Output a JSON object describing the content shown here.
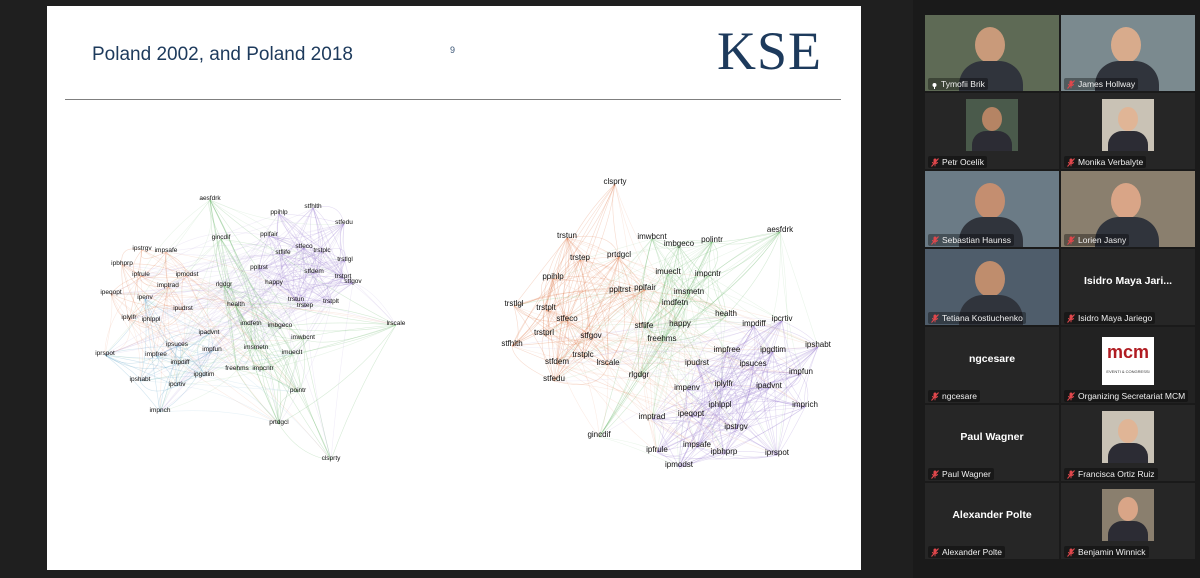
{
  "slide": {
    "title": "Poland 2002, and Poland 2018",
    "page_number": "9",
    "logo_text": "KSE",
    "network_2002": [
      {
        "label": "aesfdrk",
        "cluster": "green"
      },
      {
        "label": "stfhlth",
        "cluster": "purple"
      },
      {
        "label": "ppihlp",
        "cluster": "purple"
      },
      {
        "label": "stfedu",
        "cluster": "purple"
      },
      {
        "label": "pplfair",
        "cluster": "purple"
      },
      {
        "label": "gincdif",
        "cluster": "green"
      },
      {
        "label": "stflife",
        "cluster": "purple"
      },
      {
        "label": "stfeco",
        "cluster": "purple"
      },
      {
        "label": "trstplc",
        "cluster": "purple"
      },
      {
        "label": "trstlgl",
        "cluster": "purple"
      },
      {
        "label": "ipstrgv",
        "cluster": "orange"
      },
      {
        "label": "impsafe",
        "cluster": "orange"
      },
      {
        "label": "ppltrst",
        "cluster": "purple"
      },
      {
        "label": "stfdem",
        "cluster": "purple"
      },
      {
        "label": "trstprt",
        "cluster": "purple"
      },
      {
        "label": "stfgov",
        "cluster": "purple"
      },
      {
        "label": "ipbhprp",
        "cluster": "orange"
      },
      {
        "label": "rlgdgr",
        "cluster": "green"
      },
      {
        "label": "happy",
        "cluster": "purple"
      },
      {
        "label": "ipfrule",
        "cluster": "orange"
      },
      {
        "label": "ipmodst",
        "cluster": "orange"
      },
      {
        "label": "imptrad",
        "cluster": "orange"
      },
      {
        "label": "trstun",
        "cluster": "purple"
      },
      {
        "label": "trstplt",
        "cluster": "purple"
      },
      {
        "label": "trstep",
        "cluster": "purple"
      },
      {
        "label": "ipeqopt",
        "cluster": "orange"
      },
      {
        "label": "health",
        "cluster": "green"
      },
      {
        "label": "ipenv",
        "cluster": "blue"
      },
      {
        "label": "ipudrst",
        "cluster": "orange"
      },
      {
        "label": "lrscale",
        "cluster": "green"
      },
      {
        "label": "iplylfr",
        "cluster": "orange"
      },
      {
        "label": "iphlppl",
        "cluster": "orange"
      },
      {
        "label": "imdfetn",
        "cluster": "green"
      },
      {
        "label": "imbgeco",
        "cluster": "green"
      },
      {
        "label": "ipadvnt",
        "cluster": "blue"
      },
      {
        "label": "imwbcnt",
        "cluster": "green"
      },
      {
        "label": "ipsuces",
        "cluster": "blue"
      },
      {
        "label": "ipshabt",
        "cluster": "blue"
      },
      {
        "label": "imsmetn",
        "cluster": "green"
      },
      {
        "label": "ipcrtiv",
        "cluster": "blue"
      },
      {
        "label": "impfree",
        "cluster": "blue"
      },
      {
        "label": "impfun",
        "cluster": "blue"
      },
      {
        "label": "imueclt",
        "cluster": "green"
      },
      {
        "label": "impdiff",
        "cluster": "blue"
      },
      {
        "label": "freehms",
        "cluster": "green"
      },
      {
        "label": "impcntr",
        "cluster": "green"
      },
      {
        "label": "ipgdtim",
        "cluster": "blue"
      },
      {
        "label": "iprspot",
        "cluster": "blue"
      },
      {
        "label": "impnch",
        "cluster": "blue"
      },
      {
        "label": "pointr",
        "cluster": "green"
      },
      {
        "label": "prtdgcl",
        "cluster": "green"
      },
      {
        "label": "clsprty",
        "cluster": "green"
      }
    ],
    "network_2018": [
      {
        "label": "clsprty",
        "cluster": "orange"
      },
      {
        "label": "aesfdrk",
        "cluster": "green"
      },
      {
        "label": "trstun",
        "cluster": "orange"
      },
      {
        "label": "imwbcnt",
        "cluster": "green"
      },
      {
        "label": "imbgeco",
        "cluster": "green"
      },
      {
        "label": "polintr",
        "cluster": "green"
      },
      {
        "label": "trstep",
        "cluster": "orange"
      },
      {
        "label": "prtdgcl",
        "cluster": "orange"
      },
      {
        "label": "imueclt",
        "cluster": "green"
      },
      {
        "label": "impcntr",
        "cluster": "green"
      },
      {
        "label": "ppihlp",
        "cluster": "orange"
      },
      {
        "label": "imsmetn",
        "cluster": "green"
      },
      {
        "label": "ppltrst",
        "cluster": "orange"
      },
      {
        "label": "pplfair",
        "cluster": "orange"
      },
      {
        "label": "imdfetn",
        "cluster": "green"
      },
      {
        "label": "trstlgl",
        "cluster": "orange"
      },
      {
        "label": "trstplt",
        "cluster": "orange"
      },
      {
        "label": "health",
        "cluster": "green"
      },
      {
        "label": "ipcrtiv",
        "cluster": "purple"
      },
      {
        "label": "stfeco",
        "cluster": "orange"
      },
      {
        "label": "stflife",
        "cluster": "green"
      },
      {
        "label": "happy",
        "cluster": "green"
      },
      {
        "label": "impdiff",
        "cluster": "purple"
      },
      {
        "label": "trstprl",
        "cluster": "orange"
      },
      {
        "label": "stfgov",
        "cluster": "orange"
      },
      {
        "label": "freehms",
        "cluster": "green"
      },
      {
        "label": "ipshabt",
        "cluster": "purple"
      },
      {
        "label": "stfhlth",
        "cluster": "orange"
      },
      {
        "label": "impfree",
        "cluster": "purple"
      },
      {
        "label": "ipgdtim",
        "cluster": "purple"
      },
      {
        "label": "trstplc",
        "cluster": "orange"
      },
      {
        "label": "stfdem",
        "cluster": "orange"
      },
      {
        "label": "lrscale",
        "cluster": "orange"
      },
      {
        "label": "ipudrst",
        "cluster": "purple"
      },
      {
        "label": "ipsuces",
        "cluster": "purple"
      },
      {
        "label": "stfedu",
        "cluster": "orange"
      },
      {
        "label": "rlgdgr",
        "cluster": "green"
      },
      {
        "label": "impfun",
        "cluster": "purple"
      },
      {
        "label": "iplylfr",
        "cluster": "purple"
      },
      {
        "label": "ipadvnt",
        "cluster": "purple"
      },
      {
        "label": "impenv",
        "cluster": "purple"
      },
      {
        "label": "iphlppl",
        "cluster": "purple"
      },
      {
        "label": "imprich",
        "cluster": "purple"
      },
      {
        "label": "imptrad",
        "cluster": "purple"
      },
      {
        "label": "ipeqopt",
        "cluster": "purple"
      },
      {
        "label": "ipstrgv",
        "cluster": "purple"
      },
      {
        "label": "gincdif",
        "cluster": "green"
      },
      {
        "label": "impsafe",
        "cluster": "purple"
      },
      {
        "label": "ipfrule",
        "cluster": "purple"
      },
      {
        "label": "ipbhprp",
        "cluster": "purple"
      },
      {
        "label": "iprspot",
        "cluster": "purple"
      },
      {
        "label": "ipmodst",
        "cluster": "purple"
      }
    ],
    "cluster_colors": {
      "orange": "#e07b4a",
      "green": "#6bb86b",
      "purple": "#9a7fd0",
      "blue": "#5fa3c7"
    }
  },
  "participants": [
    {
      "name": "Tymofii Brik",
      "speaking": true,
      "video": true,
      "muted": false,
      "pinned": true
    },
    {
      "name": "James Hollway",
      "video": true,
      "muted": true
    },
    {
      "name": "Petr Ocelík",
      "video": true,
      "muted": true
    },
    {
      "name": "Monika Verbalyte",
      "video": true,
      "muted": true
    },
    {
      "name": "Sebastian Haunss",
      "video": true,
      "muted": true
    },
    {
      "name": "Lorien Jasny",
      "video": true,
      "muted": true
    },
    {
      "name": "Tetiana Kostiuchenko",
      "video": true,
      "muted": true
    },
    {
      "name": "Isidro Maya Jariego",
      "display_name": "Isidro Maya Jari...",
      "video": false,
      "muted": true
    },
    {
      "name": "ngcesare",
      "display_name": "ngcesare",
      "video": false,
      "muted": true
    },
    {
      "name": "Organizing Secretariat MCM",
      "logo_text": "mcm",
      "logo_sub": "EVENTI & CONGRESSI",
      "video": true,
      "muted": true
    },
    {
      "name": "Paul Wagner",
      "display_name": "Paul Wagner",
      "video": false,
      "muted": true
    },
    {
      "name": "Francisca Ortiz Ruiz",
      "video": true,
      "muted": true
    },
    {
      "name": "Alexander Polte",
      "display_name": "Alexander Polte",
      "video": false,
      "muted": true
    },
    {
      "name": "Benjamin Winnick",
      "video": true,
      "muted": true
    }
  ]
}
